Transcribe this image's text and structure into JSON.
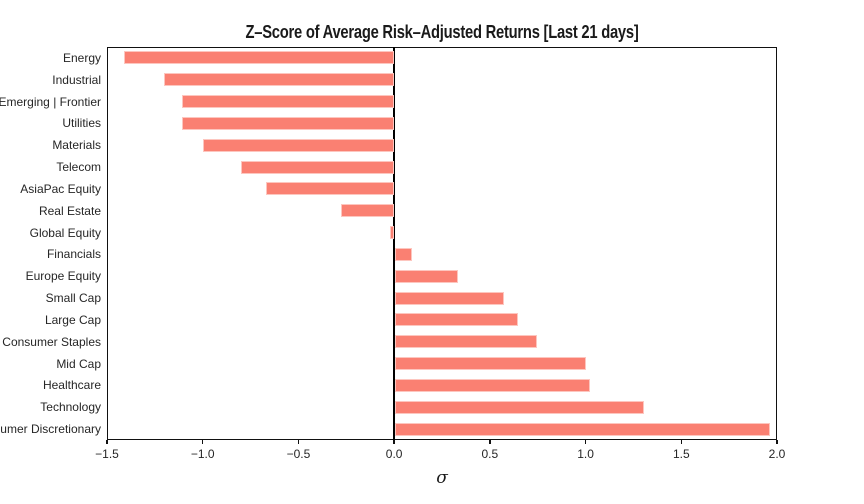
{
  "title": "Z–Score of Average Risk–Adjusted Returns [Last 21 days]",
  "xlabel": "σ",
  "colors": {
    "bar": "#fa8072",
    "axis": "#111111",
    "text": "#262626"
  },
  "chart_data": {
    "type": "bar",
    "orientation": "horizontal",
    "title": "Z–Score of Average Risk–Adjusted Returns [Last 21 days]",
    "xlabel": "σ",
    "xlim": [
      -1.5,
      2.0
    ],
    "xtick_values": [
      -1.5,
      -1.0,
      -0.5,
      0.0,
      0.5,
      1.0,
      1.5,
      2.0
    ],
    "xtick_labels": [
      "−1.5",
      "−1.0",
      "−0.5",
      "0.0",
      "0.5",
      "1.0",
      "1.5",
      "2.0"
    ],
    "grid": false,
    "legend": "none",
    "bar_color": "#fa8072",
    "categories": [
      "Energy",
      "Industrial",
      "Emerging | Frontier",
      "Utilities",
      "Materials",
      "Telecom",
      "AsiaPac Equity",
      "Real Estate",
      "Global Equity",
      "Financials",
      "Europe Equity",
      "Small Cap",
      "Large Cap",
      "Consumer Staples",
      "Mid Cap",
      "Healthcare",
      "Technology",
      "Consumer Discretionary"
    ],
    "values": [
      -1.41,
      -1.2,
      -1.11,
      -1.11,
      -1.0,
      -0.8,
      -0.67,
      -0.28,
      -0.02,
      0.09,
      0.33,
      0.57,
      0.64,
      0.74,
      1.0,
      1.02,
      1.3,
      1.96
    ]
  }
}
